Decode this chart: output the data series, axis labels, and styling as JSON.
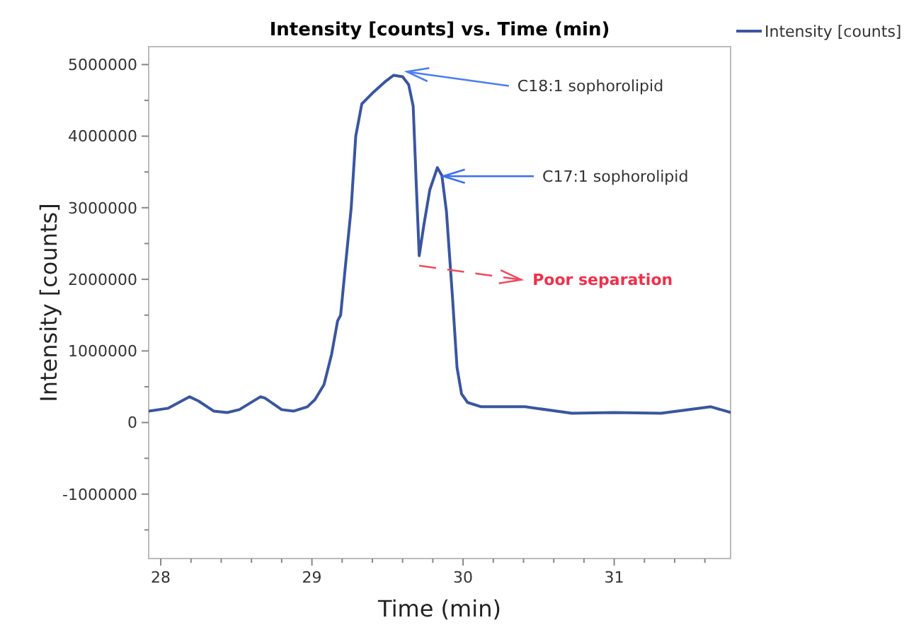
{
  "chart_data": {
    "type": "line",
    "title": "Intensity [counts] vs. Time (min)",
    "xlabel": "Time (min)",
    "ylabel": "Intensity [counts]",
    "xlim": [
      27.92,
      31.77
    ],
    "xticks": [
      28,
      {
        "value": 28.2,
        "label": null
      },
      {
        "value": 28.4,
        "label": null
      },
      {
        "value": 28.6,
        "label": null
      },
      {
        "value": 28.8,
        "label": null
      },
      29,
      {
        "value": 29.2,
        "label": null
      },
      {
        "value": 29.4,
        "label": null
      },
      {
        "value": 29.6,
        "label": null
      },
      {
        "value": 29.8,
        "label": null
      },
      30,
      {
        "value": 30.2,
        "label": null
      },
      {
        "value": 30.4,
        "label": null
      },
      {
        "value": 30.6,
        "label": null
      },
      {
        "value": 30.8,
        "label": null
      },
      31,
      {
        "value": 31.2,
        "label": null
      },
      {
        "value": 31.4,
        "label": null
      },
      {
        "value": 31.6,
        "label": null
      }
    ],
    "ylim": [
      -1900000,
      5250000
    ],
    "yticks": [
      {
        "value": -1500000,
        "label": null
      },
      -1000000,
      {
        "value": -500000,
        "label": null
      },
      0,
      {
        "value": 500000,
        "label": null
      },
      1000000,
      {
        "value": 1500000,
        "label": null
      },
      2000000,
      {
        "value": 2500000,
        "label": null
      },
      3000000,
      {
        "value": 3500000,
        "label": null
      },
      4000000,
      {
        "value": 4500000,
        "label": null
      },
      5000000
    ],
    "grid": false,
    "legend": "top right",
    "marker": "none",
    "line_style": "solid",
    "x": [
      27.92,
      28.05,
      28.19,
      28.25,
      28.35,
      28.44,
      28.52,
      28.66,
      28.69,
      28.8,
      28.88,
      28.97,
      29.02,
      29.08,
      29.13,
      29.17,
      29.19,
      29.22,
      29.26,
      29.29,
      29.33,
      29.4,
      29.49,
      29.54,
      29.6,
      29.64,
      29.67,
      29.69,
      29.71,
      29.74,
      29.78,
      29.83,
      29.86,
      29.89,
      29.93,
      29.96,
      29.99,
      30.03,
      30.12,
      30.41,
      30.72,
      31.0,
      31.31,
      31.64,
      31.77
    ],
    "series": [
      {
        "name": "Intensity [counts]",
        "color": "#3a56a0",
        "values": [
          160000,
          200000,
          360000,
          300000,
          160000,
          140000,
          180000,
          360000,
          340000,
          180000,
          160000,
          220000,
          320000,
          530000,
          950000,
          1420000,
          1500000,
          2150000,
          3000000,
          4000000,
          4450000,
          4600000,
          4770000,
          4850000,
          4830000,
          4720000,
          4420000,
          3350000,
          2330000,
          2750000,
          3250000,
          3560000,
          3450000,
          2950000,
          1750000,
          770000,
          400000,
          280000,
          220000,
          220000,
          130000,
          140000,
          130000,
          220000,
          140000
        ]
      }
    ],
    "annotations": [
      {
        "text": "C18:1 sophorolipid",
        "x": 29.61,
        "y": 4900000
      },
      {
        "text": "C17:1 sophorolipid",
        "x": 29.85,
        "y": 3440000
      },
      {
        "text": "Poor separation",
        "x": 29.71,
        "y": 2330000
      }
    ]
  }
}
